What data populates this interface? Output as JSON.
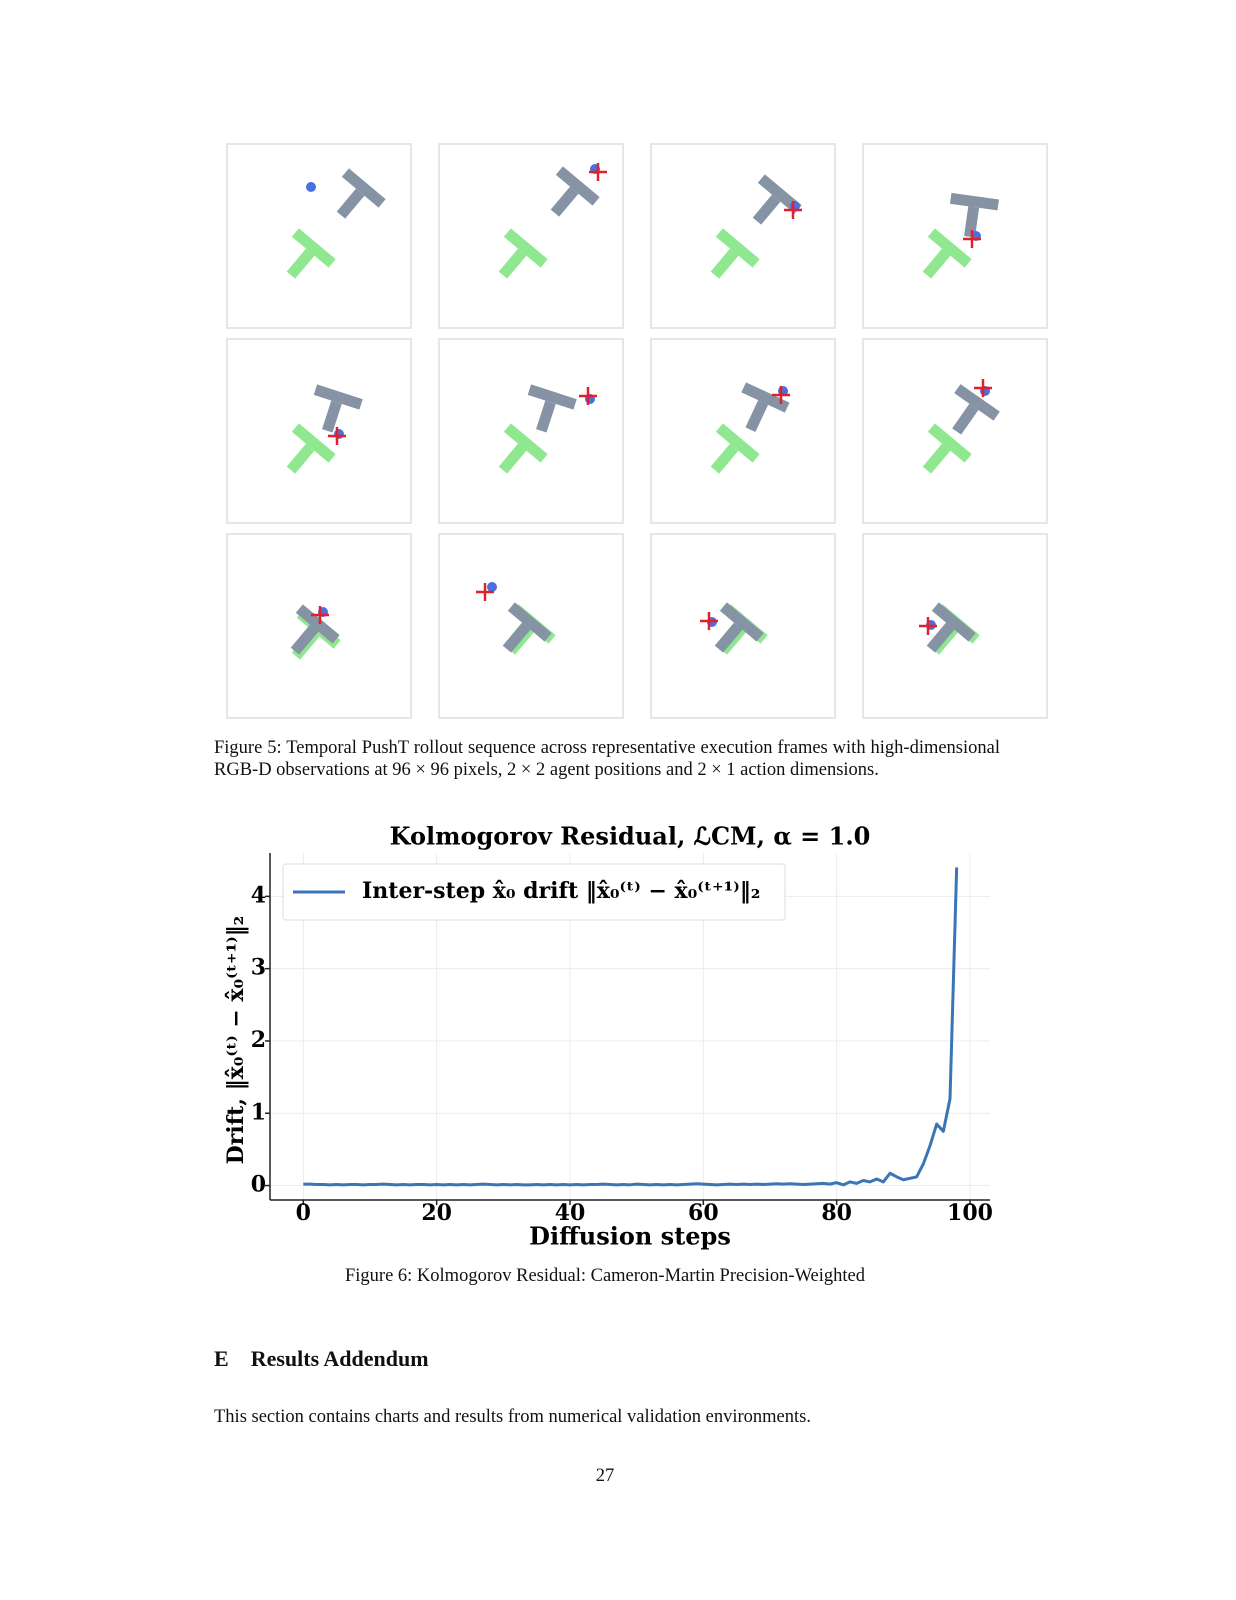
{
  "figure5": {
    "caption": "Figure 5: Temporal PushT rollout sequence across representative execution frames with high-dimensional RGB-D observations at 96 × 96 pixels, 2 × 2 agent positions and 2 × 1 action dimensions."
  },
  "chart_data": {
    "type": "line",
    "title": "Kolmogorov Residual, ℒCM, α = 1.0",
    "xlabel": "Diffusion steps",
    "ylabel": "Drift, ‖x̂₀⁽ᵗ⁾ − x̂₀⁽ᵗ⁺¹⁾‖₂",
    "x": [
      0,
      1,
      2,
      3,
      4,
      5,
      6,
      7,
      8,
      9,
      10,
      11,
      12,
      13,
      14,
      15,
      16,
      17,
      18,
      19,
      20,
      21,
      22,
      23,
      24,
      25,
      26,
      27,
      28,
      29,
      30,
      31,
      32,
      33,
      34,
      35,
      36,
      37,
      38,
      39,
      40,
      41,
      42,
      43,
      44,
      45,
      46,
      47,
      48,
      49,
      50,
      51,
      52,
      53,
      54,
      55,
      56,
      57,
      58,
      59,
      60,
      61,
      62,
      63,
      64,
      65,
      66,
      67,
      68,
      69,
      70,
      71,
      72,
      73,
      74,
      75,
      76,
      77,
      78,
      79,
      80,
      81,
      82,
      83,
      84,
      85,
      86,
      87,
      88,
      89,
      90,
      91,
      92,
      93,
      94,
      95,
      96,
      97,
      98
    ],
    "series": [
      {
        "name": "Inter-step x̂₀ drift  ‖x̂₀⁽ᵗ⁾ − x̂₀⁽ᵗ⁺¹⁾‖₂",
        "color": "#3a75b5",
        "values": [
          0.02,
          0.02,
          0.015,
          0.015,
          0.01,
          0.015,
          0.01,
          0.015,
          0.015,
          0.01,
          0.015,
          0.015,
          0.02,
          0.015,
          0.01,
          0.015,
          0.01,
          0.015,
          0.015,
          0.01,
          0.015,
          0.01,
          0.015,
          0.01,
          0.015,
          0.01,
          0.015,
          0.02,
          0.015,
          0.01,
          0.015,
          0.01,
          0.015,
          0.01,
          0.01,
          0.015,
          0.01,
          0.015,
          0.01,
          0.015,
          0.01,
          0.015,
          0.01,
          0.015,
          0.015,
          0.02,
          0.015,
          0.01,
          0.015,
          0.01,
          0.02,
          0.015,
          0.01,
          0.015,
          0.01,
          0.015,
          0.01,
          0.015,
          0.02,
          0.025,
          0.02,
          0.015,
          0.01,
          0.015,
          0.02,
          0.015,
          0.02,
          0.015,
          0.02,
          0.015,
          0.02,
          0.025,
          0.02,
          0.025,
          0.02,
          0.015,
          0.02,
          0.025,
          0.03,
          0.02,
          0.04,
          0.01,
          0.05,
          0.03,
          0.07,
          0.05,
          0.09,
          0.05,
          0.17,
          0.12,
          0.08,
          0.1,
          0.12,
          0.3,
          0.55,
          0.85,
          0.75,
          1.2,
          4.4
        ]
      }
    ],
    "xlim": [
      -5,
      103
    ],
    "ylim": [
      -0.2,
      4.6
    ],
    "xticks": [
      0,
      20,
      40,
      60,
      80,
      100
    ],
    "yticks": [
      0,
      1,
      2,
      3,
      4
    ],
    "grid": true,
    "legend": "upper left"
  },
  "figure6": {
    "caption": "Figure 6: Kolmogorov Residual: Cameron-Martin Precision-Weighted"
  },
  "section": {
    "number": "E",
    "title": "Results Addendum"
  },
  "paragraph": "This section contains charts and results from numerical validation environments.",
  "page_number": "27"
}
